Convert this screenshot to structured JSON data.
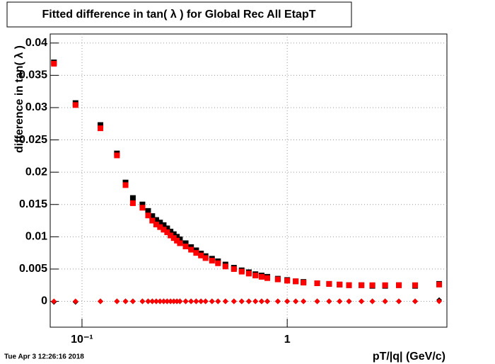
{
  "chart_data": {
    "type": "scatter",
    "title": "Fitted difference in tan( λ ) for Global Rec All EtapT",
    "x_label": "pT/|q| (GeV/c)",
    "y_label": "difference in tan( λ )",
    "timestamp": "Tue Apr  3 12:26:16 2018",
    "log_x": true,
    "grid": true,
    "xlim": [
      0.07,
      6
    ],
    "ylim": [
      -0.004,
      0.0414
    ],
    "xticks": [
      {
        "value": 0.1,
        "label": "10⁻¹"
      },
      1
    ],
    "yticks": [
      0,
      0.005,
      0.01,
      0.015,
      0.02,
      0.025,
      0.03,
      0.035,
      0.04
    ],
    "x": [
      0.073,
      0.093,
      0.123,
      0.148,
      0.163,
      0.177,
      0.197,
      0.21,
      0.22,
      0.23,
      0.24,
      0.25,
      0.26,
      0.27,
      0.28,
      0.29,
      0.3,
      0.32,
      0.34,
      0.36,
      0.38,
      0.4,
      0.43,
      0.46,
      0.5,
      0.55,
      0.6,
      0.65,
      0.7,
      0.75,
      0.8,
      0.9,
      1.0,
      1.1,
      1.2,
      1.4,
      1.6,
      1.8,
      2.0,
      2.3,
      2.6,
      3.0,
      3.5,
      4.2,
      5.5
    ],
    "series": [
      {
        "color": "#000000",
        "marker": "square",
        "values": [
          0.037,
          0.0307,
          0.0273,
          0.0229,
          0.0184,
          0.016,
          0.015,
          0.014,
          0.0132,
          0.0126,
          0.0122,
          0.0118,
          0.0113,
          0.0108,
          0.0104,
          0.01,
          0.0096,
          0.009,
          0.0084,
          0.0079,
          0.0074,
          0.007,
          0.0066,
          0.0062,
          0.0057,
          0.0052,
          0.0048,
          0.0045,
          0.0042,
          0.004,
          0.0038,
          0.0035,
          0.0033,
          0.0031,
          0.003,
          0.0028,
          0.0027,
          0.0026,
          0.0025,
          0.0025,
          0.0024,
          0.0024,
          0.0025,
          0.0024,
          0.0027
        ]
      },
      {
        "color": "#ff0000",
        "marker": "square",
        "values": [
          0.0368,
          0.0304,
          0.0268,
          0.0226,
          0.018,
          0.0152,
          0.0145,
          0.0133,
          0.0125,
          0.0119,
          0.0115,
          0.0111,
          0.0107,
          0.0102,
          0.0098,
          0.0094,
          0.009,
          0.0085,
          0.008,
          0.0075,
          0.0071,
          0.0067,
          0.0063,
          0.0059,
          0.0054,
          0.005,
          0.0046,
          0.0043,
          0.004,
          0.0038,
          0.0036,
          0.0034,
          0.0032,
          0.0031,
          0.0029,
          0.0028,
          0.0027,
          0.0026,
          0.0025,
          0.0025,
          0.0025,
          0.0025,
          0.0025,
          0.0025,
          0.0026
        ]
      },
      {
        "color": "#000000",
        "marker": "diamond",
        "values": [
          -0.0001,
          -0.0001,
          0,
          0,
          0,
          0,
          0,
          0,
          0,
          0,
          0,
          0,
          0,
          0,
          0,
          0,
          0,
          0,
          0,
          0,
          0,
          0,
          0,
          0,
          0,
          0,
          0,
          0,
          0,
          0,
          0,
          0,
          0,
          0,
          0,
          0,
          0,
          0,
          0,
          0,
          0,
          0,
          0,
          0,
          0.0002
        ]
      },
      {
        "color": "#ff0000",
        "marker": "diamond",
        "values": [
          0,
          0,
          0,
          0,
          0,
          0,
          0,
          0,
          0,
          0,
          0,
          0,
          0,
          0,
          0,
          0,
          0,
          0,
          0,
          0,
          0,
          0,
          0,
          0,
          0,
          0,
          0,
          0,
          0,
          0,
          0,
          0,
          0,
          0,
          0,
          0,
          0,
          0,
          0,
          0,
          0,
          0,
          0,
          0,
          0
        ]
      }
    ]
  }
}
